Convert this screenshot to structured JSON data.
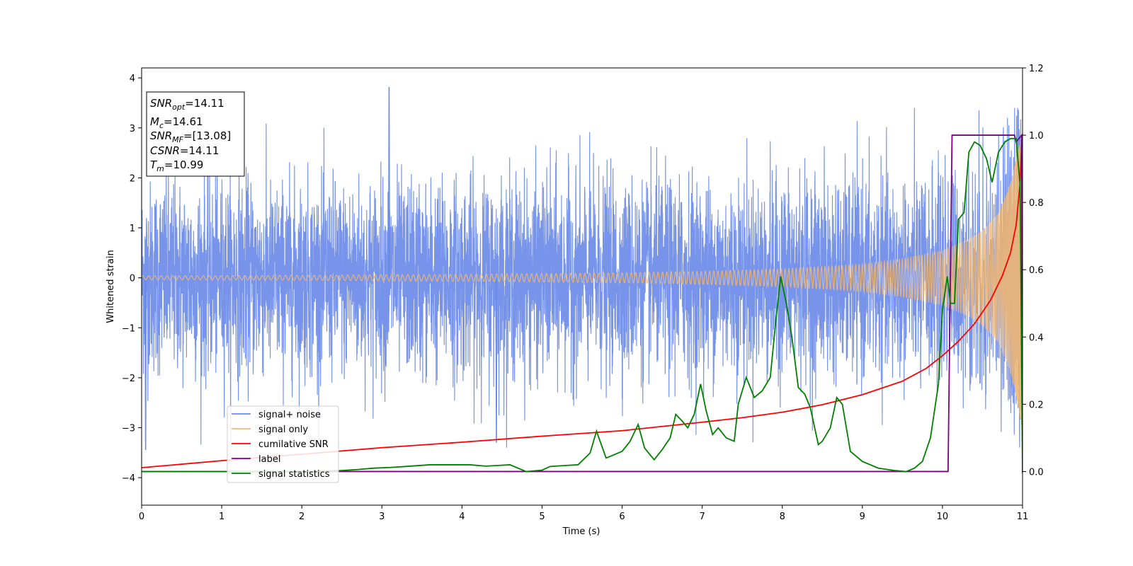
{
  "chart_data": {
    "type": "line",
    "title": "",
    "xlabel": "Time (s)",
    "ylabel": "Whitened strain",
    "xlim": [
      0,
      11
    ],
    "ylim": [
      -4.55,
      4.2
    ],
    "y2lim": [
      -0.1,
      1.2
    ],
    "xticks": [
      "0",
      "1",
      "2",
      "3",
      "4",
      "5",
      "6",
      "7",
      "8",
      "9",
      "10",
      "11"
    ],
    "yticks": [
      "4",
      "3",
      "2",
      "1",
      "0",
      "−1",
      "−2",
      "−3",
      "−4"
    ],
    "y2ticks": [
      "1.2",
      "1.0",
      "0.8",
      "0.6",
      "0.4",
      "0.2",
      "0.0"
    ],
    "grid": false,
    "legend_position": "lower-left",
    "annotations": [
      {
        "base": "SNR",
        "sub": "opt",
        "value": "=14.11"
      },
      {
        "base": "M",
        "sub": "c",
        "value": "=14.61"
      },
      {
        "base": "SNR",
        "sub": "MF",
        "value": "=[13.08]"
      },
      {
        "base": "CSNR",
        "sub": "",
        "value": "=14.11"
      },
      {
        "base": "T",
        "sub": "m",
        "value": "=10.99"
      }
    ],
    "series": [
      {
        "name": "signal+ noise",
        "axis": "left",
        "color": "#6b8be8",
        "description": "whitened noise plus chirp, amplitude ~N(0,1) with spikes up to 3.8",
        "peak_values": [
          {
            "x": 3.09,
            "y": 3.82
          },
          {
            "x": 0.05,
            "y": -3.45
          },
          {
            "x": 4.43,
            "y": -3.3
          }
        ],
        "x_end": 11.0
      },
      {
        "name": "signal only",
        "axis": "left",
        "color": "#f5b96e",
        "description": "chirp envelope",
        "envelope": [
          [
            0,
            0.04
          ],
          [
            2,
            0.05
          ],
          [
            4,
            0.07
          ],
          [
            6,
            0.1
          ],
          [
            7,
            0.13
          ],
          [
            8,
            0.18
          ],
          [
            9,
            0.27
          ],
          [
            9.5,
            0.38
          ],
          [
            10,
            0.55
          ],
          [
            10.3,
            0.75
          ],
          [
            10.5,
            0.95
          ],
          [
            10.7,
            1.3
          ],
          [
            10.85,
            1.9
          ],
          [
            10.95,
            2.6
          ],
          [
            10.99,
            3.0
          ]
        ]
      },
      {
        "name": "cumilative SNR",
        "axis": "left",
        "color": "#ff0000",
        "x": [
          0,
          1,
          2,
          3,
          4,
          5,
          6,
          7,
          7.5,
          8,
          8.5,
          9,
          9.5,
          9.8,
          10,
          10.2,
          10.4,
          10.6,
          10.75,
          10.85,
          10.92,
          10.97,
          10.99,
          11.0
        ],
        "y": [
          -3.8,
          -3.66,
          -3.53,
          -3.4,
          -3.29,
          -3.17,
          -3.06,
          -2.89,
          -2.8,
          -2.69,
          -2.54,
          -2.34,
          -2.07,
          -1.81,
          -1.56,
          -1.27,
          -0.92,
          -0.45,
          0.05,
          0.5,
          1.05,
          1.9,
          2.8,
          -3.92
        ]
      },
      {
        "name": "label",
        "axis": "right",
        "color": "#800080",
        "x": [
          0,
          10.07,
          10.12,
          10.9,
          10.92,
          10.99,
          11.0
        ],
        "y": [
          0.0,
          0.0,
          1.0,
          1.0,
          0.98,
          1.0,
          0.0
        ]
      },
      {
        "name": "signal statistics",
        "axis": "right",
        "color": "#008000",
        "x": [
          0,
          1,
          2,
          2.5,
          2.7,
          2.9,
          3.1,
          3.3,
          3.6,
          3.8,
          4.0,
          4.1,
          4.3,
          4.45,
          4.6,
          4.8,
          5.0,
          5.1,
          5.3,
          5.45,
          5.6,
          5.68,
          5.8,
          5.9,
          6.0,
          6.1,
          6.2,
          6.28,
          6.4,
          6.5,
          6.6,
          6.67,
          6.75,
          6.82,
          6.9,
          6.98,
          7.05,
          7.13,
          7.2,
          7.3,
          7.4,
          7.45,
          7.55,
          7.65,
          7.75,
          7.8,
          7.85,
          7.92,
          7.98,
          8.05,
          8.12,
          8.2,
          8.28,
          8.35,
          8.45,
          8.5,
          8.6,
          8.68,
          8.75,
          8.85,
          9.0,
          9.2,
          9.4,
          9.55,
          9.65,
          9.75,
          9.85,
          9.95,
          10.0,
          10.06,
          10.1,
          10.15,
          10.2,
          10.27,
          10.33,
          10.4,
          10.47,
          10.55,
          10.62,
          10.7,
          10.78,
          10.85,
          10.92,
          10.97,
          11.0
        ],
        "y": [
          0.0,
          0.0,
          0.0,
          0.003,
          0.006,
          0.01,
          0.012,
          0.015,
          0.02,
          0.02,
          0.02,
          0.02,
          0.016,
          0.018,
          0.02,
          0.0,
          0.004,
          0.015,
          0.018,
          0.02,
          0.055,
          0.12,
          0.04,
          0.05,
          0.06,
          0.09,
          0.14,
          0.07,
          0.035,
          0.065,
          0.1,
          0.17,
          0.15,
          0.13,
          0.17,
          0.26,
          0.18,
          0.11,
          0.13,
          0.1,
          0.09,
          0.2,
          0.28,
          0.22,
          0.24,
          0.26,
          0.28,
          0.45,
          0.58,
          0.5,
          0.4,
          0.25,
          0.23,
          0.19,
          0.08,
          0.09,
          0.13,
          0.22,
          0.2,
          0.06,
          0.03,
          0.01,
          0.003,
          0.0,
          0.01,
          0.03,
          0.1,
          0.26,
          0.48,
          0.58,
          0.5,
          0.5,
          0.75,
          0.77,
          0.95,
          0.98,
          0.97,
          0.93,
          0.86,
          0.95,
          0.98,
          0.99,
          0.99,
          0.85,
          0.0
        ]
      }
    ]
  }
}
